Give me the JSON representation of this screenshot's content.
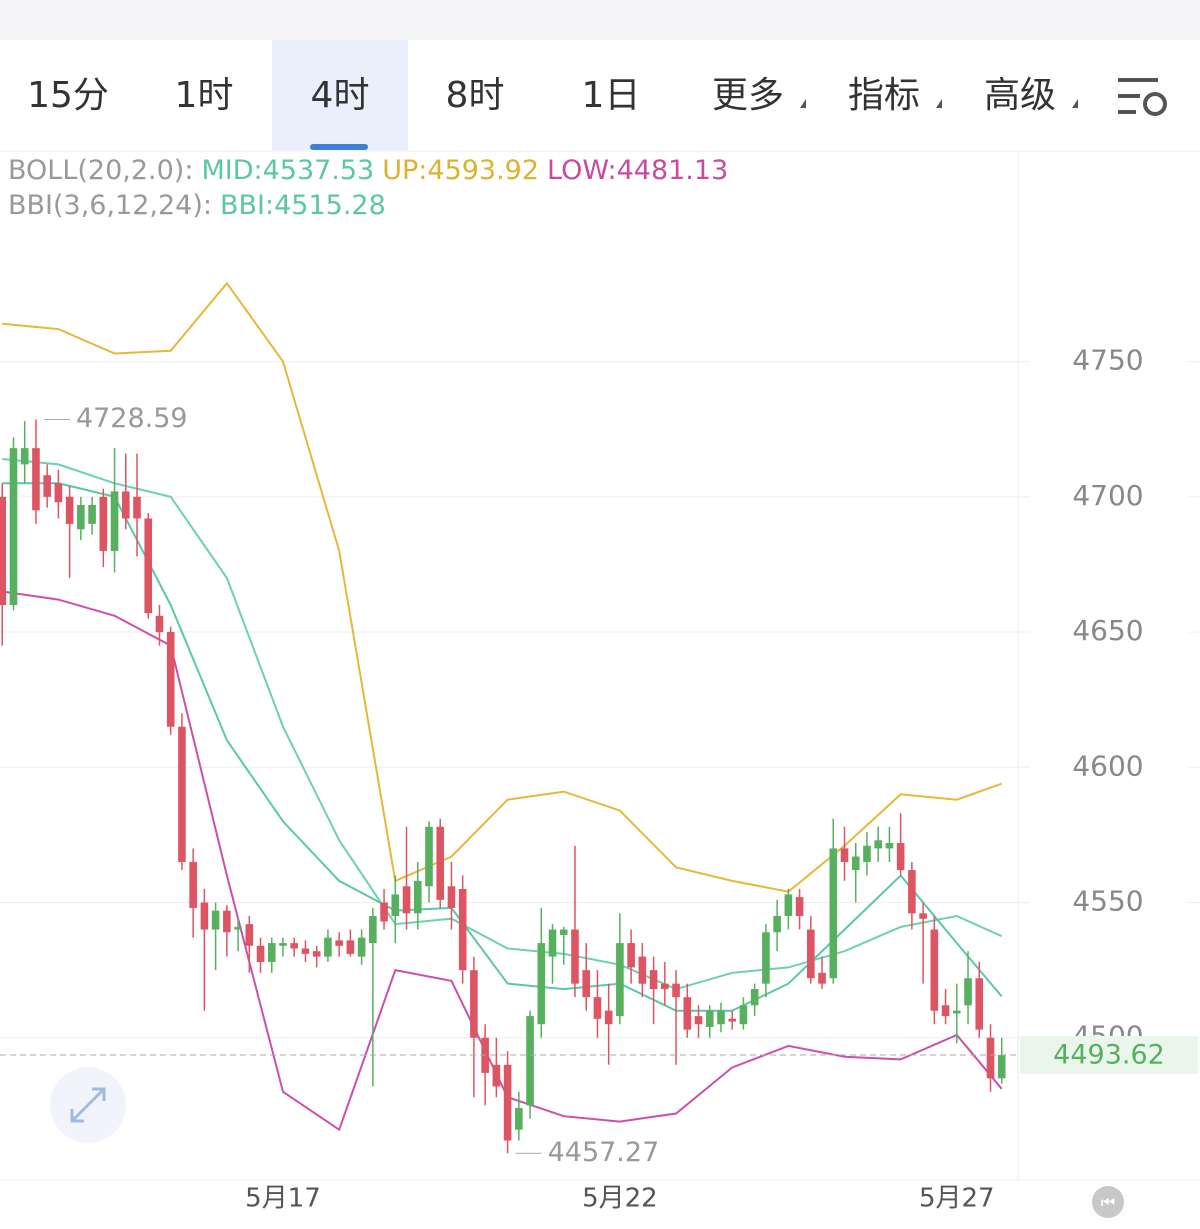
{
  "tabs": [
    "15分",
    "1时",
    "4时",
    "8时",
    "1日",
    "更多",
    "指标",
    "高级"
  ],
  "selected_tab": 2,
  "chart_data": {
    "type": "candlestick",
    "indicator_lines": [
      {
        "title": "BOLL(20,2.0):",
        "items": [
          {
            "label": "MID:4537.53",
            "color": "#5cc7a5"
          },
          {
            "label": "UP:4593.92",
            "color": "#e0b030"
          },
          {
            "label": "LOW:4481.13",
            "color": "#c94a9e"
          }
        ]
      },
      {
        "title": "BBI(3,6,12,24):",
        "items": [
          {
            "label": "BBI:4515.28",
            "color": "#5cc7a5"
          }
        ]
      }
    ],
    "categories": [
      null,
      null,
      null,
      null,
      null,
      null,
      null,
      null,
      null,
      null,
      null,
      null,
      null,
      null,
      null,
      null,
      null,
      null,
      null,
      null,
      null,
      null,
      null,
      null,
      null,
      "5月17",
      null,
      null,
      null,
      null,
      null,
      null,
      null,
      null,
      null,
      null,
      null,
      null,
      null,
      null,
      null,
      null,
      null,
      null,
      null,
      null,
      null,
      null,
      null,
      null,
      null,
      null,
      null,
      null,
      null,
      "5月22",
      null,
      null,
      null,
      null,
      null,
      null,
      null,
      null,
      null,
      null,
      null,
      null,
      null,
      null,
      null,
      null,
      null,
      null,
      null,
      null,
      null,
      null,
      null,
      null,
      null,
      null,
      null,
      null,
      null,
      "5月27",
      null,
      null,
      null,
      null
    ],
    "open": [
      4700,
      4660,
      4712,
      4718,
      4708,
      4705,
      4700,
      4688,
      4690,
      4700,
      4680,
      4702,
      4700,
      4692,
      4656,
      4650,
      4615,
      4565,
      4550,
      4540,
      4547,
      4540,
      4542,
      4534,
      4528,
      4534,
      4535,
      4533,
      4532,
      4530,
      4536,
      4536,
      4530,
      4535,
      4550,
      4545,
      4556,
      4546,
      4556,
      4578,
      4556,
      4555,
      4525,
      4500,
      4490,
      4490,
      4466,
      4475,
      4505,
      4530,
      4538,
      4540,
      4525,
      4515,
      4510,
      4508,
      4535,
      4530,
      4525,
      4520,
      4520,
      4515,
      4508,
      4504,
      4505,
      4507,
      4505,
      4512,
      4520,
      4539,
      4545,
      4552,
      4540,
      4524,
      4522,
      4570,
      4562,
      4565,
      4570,
      4570,
      4572,
      4562,
      4546,
      4540,
      4512,
      4509,
      4512,
      4522,
      4500,
      4485
    ],
    "high": [
      4705,
      4722,
      4728,
      4728.59,
      4712,
      4710,
      4704,
      4700,
      4700,
      4703,
      4718,
      4716,
      4716,
      4694,
      4660,
      4652,
      4620,
      4570,
      4555,
      4550,
      4549,
      4544,
      4545,
      4537,
      4537,
      4537,
      4537,
      4536,
      4534,
      4540,
      4539,
      4540,
      4540,
      4548,
      4555,
      4560,
      4578,
      4565,
      4580,
      4581,
      4565,
      4560,
      4530,
      4505,
      4500,
      4495,
      4480,
      4510,
      4548,
      4542,
      4541,
      4571,
      4535,
      4525,
      4520,
      4546,
      4540,
      4535,
      4530,
      4528,
      4525,
      4520,
      4512,
      4512,
      4513,
      4510,
      4515,
      4520,
      4542,
      4551,
      4555,
      4555,
      4545,
      4530,
      4581,
      4578,
      4572,
      4576,
      4578,
      4578,
      4583,
      4565,
      4550,
      4545,
      4518,
      4520,
      4532,
      4528,
      4505,
      4500
    ],
    "low": [
      4645,
      4658,
      4705,
      4690,
      4696,
      4692,
      4670,
      4684,
      4686,
      4674,
      4672,
      4688,
      4678,
      4655,
      4645,
      4612,
      4562,
      4537,
      4510,
      4525,
      4530,
      4532,
      4524,
      4524,
      4524,
      4530,
      4530,
      4528,
      4526,
      4528,
      4530,
      4530,
      4527,
      4482,
      4540,
      4535,
      4540,
      4540,
      4550,
      4548,
      4540,
      4520,
      4478,
      4475,
      4478,
      4457.27,
      4462,
      4470,
      4500,
      4520,
      4527,
      4515,
      4510,
      4500,
      4490,
      4505,
      4520,
      4515,
      4505,
      4512,
      4490,
      4500,
      4500,
      4500,
      4502,
      4503,
      4503,
      4508,
      4515,
      4532,
      4540,
      4540,
      4520,
      4518,
      4520,
      4558,
      4550,
      4560,
      4565,
      4565,
      4560,
      4540,
      4520,
      4505,
      4505,
      4498,
      4505,
      4500,
      4480,
      4483
    ],
    "close": [
      4660,
      4718,
      4718,
      4695,
      4700,
      4698,
      4690,
      4697,
      4697,
      4680,
      4702,
      4692,
      4692,
      4657,
      4650,
      4615,
      4565,
      4548,
      4540,
      4547,
      4539,
      4541,
      4534,
      4528,
      4535,
      4535,
      4533,
      4531,
      4530,
      4537,
      4534,
      4531,
      4537,
      4545,
      4543,
      4553,
      4546,
      4558,
      4578,
      4551,
      4548,
      4525,
      4500,
      4487,
      4482,
      4462,
      4474,
      4508,
      4535,
      4540,
      4540,
      4520,
      4515,
      4507,
      4505,
      4535,
      4526,
      4520,
      4518,
      4518,
      4515,
      4503,
      4505,
      4510,
      4510,
      4506,
      4512,
      4518,
      4539,
      4545,
      4553,
      4545,
      4522,
      4520,
      4570,
      4565,
      4567,
      4571,
      4573,
      4572,
      4562,
      4546,
      4544,
      4510,
      4508,
      4510,
      4522,
      4503,
      4485,
      4493.62
    ],
    "up_color": "#56b05e",
    "down_color": "#dd5562",
    "overlays": [
      {
        "name": "UP",
        "color": "#e6b83a",
        "x": [
          0,
          5,
          10,
          15,
          20,
          25,
          30,
          35,
          40,
          45,
          50,
          55,
          60,
          65,
          70,
          75,
          80,
          85,
          89
        ],
        "values": [
          4764,
          4762,
          4753,
          4754,
          4779,
          4750,
          4680,
          4558,
          4567,
          4588,
          4591,
          4584,
          4563,
          4558,
          4554,
          4571,
          4590,
          4588,
          4593.92
        ]
      },
      {
        "name": "MID",
        "color": "#6dd0b2",
        "x": [
          0,
          5,
          10,
          15,
          20,
          25,
          30,
          35,
          40,
          45,
          50,
          55,
          60,
          65,
          70,
          75,
          80,
          85,
          89
        ],
        "values": [
          4714,
          4712,
          4705,
          4700,
          4670,
          4615,
          4573,
          4542,
          4544,
          4533,
          4531,
          4527,
          4518,
          4524,
          4526,
          4532,
          4541,
          4545,
          4537.53
        ]
      },
      {
        "name": "LOW",
        "color": "#cc4fa8",
        "x": [
          0,
          5,
          10,
          15,
          20,
          25,
          30,
          35,
          40,
          45,
          50,
          55,
          60,
          65,
          70,
          75,
          80,
          85,
          89
        ],
        "values": [
          4665,
          4662,
          4656,
          4645,
          4560,
          4480,
          4466,
          4525,
          4521,
          4478,
          4471,
          4469,
          4472,
          4489,
          4497,
          4493,
          4492,
          4501,
          4481.13
        ]
      },
      {
        "name": "BBI",
        "color": "#5ac8a8",
        "x": [
          0,
          5,
          10,
          15,
          20,
          25,
          30,
          35,
          40,
          45,
          50,
          55,
          60,
          65,
          70,
          75,
          80,
          85,
          89
        ],
        "values": [
          4705,
          4705,
          4700,
          4660,
          4610,
          4580,
          4558,
          4547,
          4548,
          4520,
          4518,
          4520,
          4510,
          4510,
          4520,
          4540,
          4560,
          4535,
          4515.28
        ]
      }
    ],
    "ylim": [
      4447.4,
      4827.5
    ],
    "yticks": [
      4500,
      4550,
      4600,
      4650,
      4700,
      4750
    ],
    "grid": true
  }
}
